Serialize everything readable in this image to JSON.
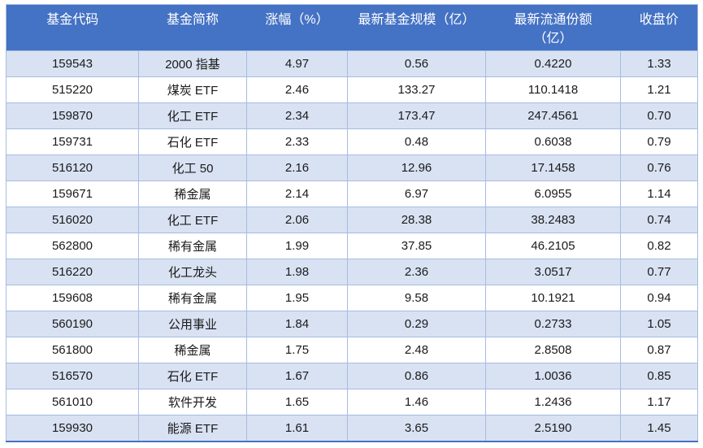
{
  "table": {
    "headers": [
      "基金代码",
      "基金简称",
      "涨幅（%）",
      "最新基金规模（亿）",
      "最新流通份额\n（亿）",
      "收盘价"
    ],
    "rows": [
      [
        "159543",
        "2000 指基",
        "4.97",
        "0.56",
        "0.4220",
        "1.33"
      ],
      [
        "515220",
        "煤炭 ETF",
        "2.46",
        "133.27",
        "110.1418",
        "1.21"
      ],
      [
        "159870",
        "化工 ETF",
        "2.34",
        "173.47",
        "247.4561",
        "0.70"
      ],
      [
        "159731",
        "石化 ETF",
        "2.33",
        "0.48",
        "0.6038",
        "0.79"
      ],
      [
        "516120",
        "化工 50",
        "2.16",
        "12.96",
        "17.1458",
        "0.76"
      ],
      [
        "159671",
        "稀金属",
        "2.14",
        "6.97",
        "6.0955",
        "1.14"
      ],
      [
        "516020",
        "化工 ETF",
        "2.06",
        "28.38",
        "38.2483",
        "0.74"
      ],
      [
        "562800",
        "稀有金属",
        "1.99",
        "37.85",
        "46.2105",
        "0.82"
      ],
      [
        "516220",
        "化工龙头",
        "1.98",
        "2.36",
        "3.0517",
        "0.77"
      ],
      [
        "159608",
        "稀有金属",
        "1.95",
        "9.58",
        "10.1921",
        "0.94"
      ],
      [
        "560190",
        "公用事业",
        "1.84",
        "0.29",
        "0.2733",
        "1.05"
      ],
      [
        "561800",
        "稀金属",
        "1.75",
        "2.48",
        "2.8508",
        "0.87"
      ],
      [
        "516570",
        "石化 ETF",
        "1.67",
        "0.86",
        "1.0036",
        "0.85"
      ],
      [
        "561010",
        "软件开发",
        "1.65",
        "1.46",
        "1.2436",
        "1.17"
      ],
      [
        "159930",
        "能源 ETF",
        "1.61",
        "3.65",
        "2.5190",
        "1.45"
      ]
    ]
  },
  "colors": {
    "header_bg": "#4472c4",
    "header_text": "#ffffff",
    "row_alt_bg": "#d9e2f3",
    "row_bg": "#ffffff",
    "grid_line": "#a6bce0",
    "bottom_border": "#4472c4",
    "body_text": "#1a1a1a"
  }
}
